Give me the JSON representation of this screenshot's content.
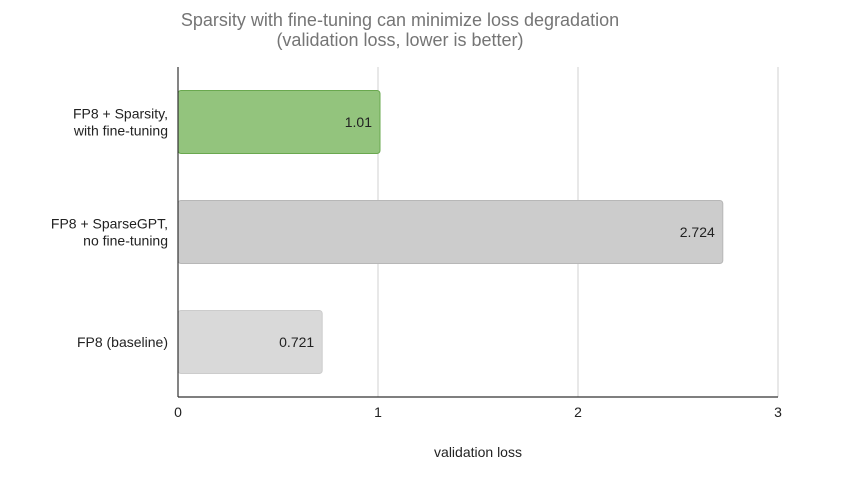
{
  "chart_data": {
    "type": "bar",
    "orientation": "horizontal",
    "title_lines": [
      "Sparsity with fine-tuning can minimize loss degradation",
      "(validation loss, lower is better)"
    ],
    "xlabel": "validation loss",
    "ylabel": "",
    "xlim": [
      0,
      3
    ],
    "xticks": [
      "0",
      "1",
      "2",
      "3"
    ],
    "grid": "vertical",
    "legend": "none",
    "categories": [
      [
        "FP8 + Sparsity,",
        "with fine-tuning"
      ],
      [
        "FP8 + SparseGPT,",
        "no fine-tuning"
      ],
      [
        "FP8 (baseline)"
      ]
    ],
    "values": [
      1.01,
      2.724,
      0.721
    ],
    "data_labels": [
      "1.01",
      "2.724",
      "0.721"
    ],
    "bar_colors": [
      "#93c47d",
      "#cccccc",
      "#d9d9d9"
    ],
    "bar_stroke_colors": [
      "#6aa84f",
      "#b7b7b7",
      "#cccccc"
    ]
  }
}
